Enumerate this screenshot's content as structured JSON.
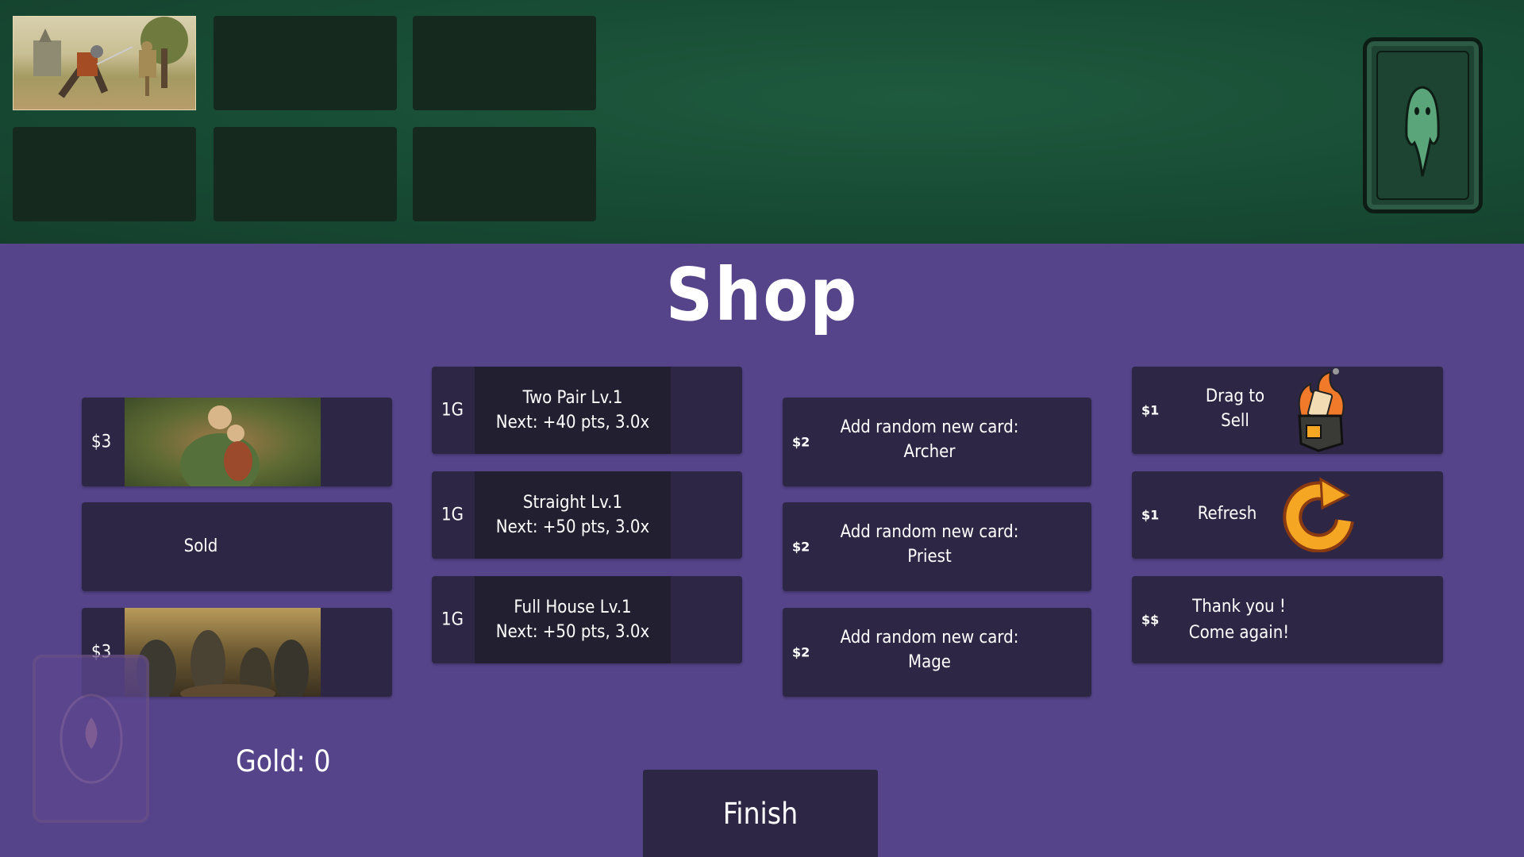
{
  "board": {
    "slots": [
      {
        "filled": true,
        "art": "knight training with sword against wooden dummy"
      },
      {
        "filled": false
      },
      {
        "filled": false
      },
      {
        "filled": false
      },
      {
        "filled": false
      },
      {
        "filled": false
      }
    ],
    "deck_icon": "ghost-card-back-icon"
  },
  "shop": {
    "title": "Shop",
    "cards": [
      {
        "price": "$3",
        "art": "elf mother embracing child in forest"
      },
      {
        "label": "Sold"
      },
      {
        "price": "$3",
        "art": "armored knights toasting at table"
      }
    ],
    "upgrades": [
      {
        "price": "1G",
        "name": "Two Pair Lv.1",
        "next": "Next: +40 pts, 3.0x"
      },
      {
        "price": "1G",
        "name": "Straight Lv.1",
        "next": "Next: +50 pts, 3.0x"
      },
      {
        "price": "1G",
        "name": "Full House Lv.1",
        "next": "Next: +50 pts, 3.0x"
      }
    ],
    "add_cards": [
      {
        "price": "$2",
        "line1": "Add random new card:",
        "line2": "Archer"
      },
      {
        "price": "$2",
        "line1": "Add random new card:",
        "line2": "Priest"
      },
      {
        "price": "$2",
        "line1": "Add random new card:",
        "line2": "Mage"
      }
    ],
    "actions": [
      {
        "price": "$1",
        "line1": "Drag to",
        "line2": "Sell",
        "icon": "burning-card-bin-icon"
      },
      {
        "price": "$1",
        "line1": "Refresh",
        "icon": "refresh-arrow-icon"
      },
      {
        "price": "$$",
        "line1": "Thank you !",
        "line2": "Come again!"
      }
    ],
    "gold": "Gold: 0",
    "finish": "Finish"
  },
  "colors": {
    "table": "#174a33",
    "shop_bg": "#55448a",
    "panel": "#2d2745",
    "accent": "#f5a623"
  }
}
